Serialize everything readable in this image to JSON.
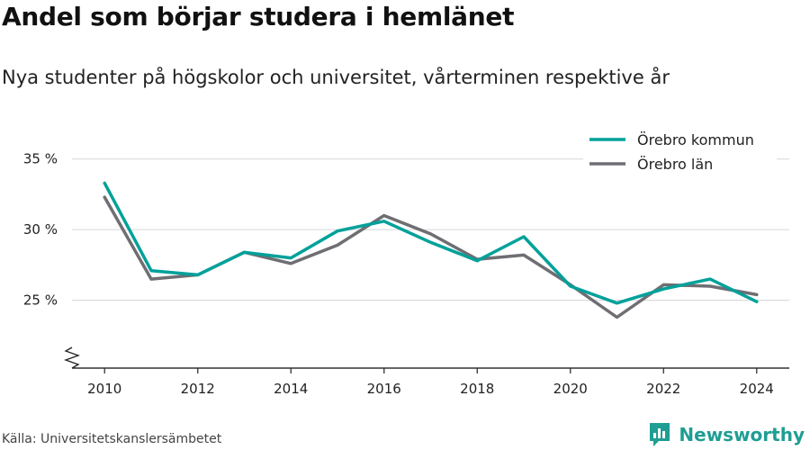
{
  "chart_data": {
    "type": "line",
    "title": "Andel som börjar studera i hemlänet",
    "subtitle": "Nya studenter på högskolor och universitet, vårterminen respektive år",
    "x": [
      2010,
      2011,
      2012,
      2013,
      2014,
      2015,
      2016,
      2017,
      2018,
      2019,
      2020,
      2021,
      2022,
      2023,
      2024
    ],
    "x_ticks": [
      2010,
      2012,
      2014,
      2016,
      2018,
      2020,
      2022,
      2024
    ],
    "y_ticks": [
      25,
      30,
      35
    ],
    "y_tick_labels": [
      "25 %",
      "30 %",
      "35 %"
    ],
    "xlim": [
      2009.3,
      2024.7
    ],
    "ylim": [
      20.2,
      36.7
    ],
    "grid": true,
    "axis_break": true,
    "legend_position": "top-right",
    "series": [
      {
        "name": "Örebro kommun",
        "color": "#00a19a",
        "values": [
          33.3,
          27.1,
          26.8,
          28.4,
          28.0,
          29.9,
          30.6,
          29.1,
          27.8,
          29.5,
          26.0,
          24.8,
          25.8,
          26.5,
          24.9
        ]
      },
      {
        "name": "Örebro län",
        "color": "#6e6e73",
        "values": [
          32.3,
          26.5,
          26.8,
          28.4,
          27.6,
          28.9,
          31.0,
          29.7,
          27.9,
          28.2,
          26.1,
          23.8,
          26.1,
          26.0,
          25.4
        ]
      }
    ]
  },
  "footer": {
    "source": "Källa: Universitetskanslersämbetet",
    "brand": "Newsworthy",
    "brand_icon": "bar-chart-logo-icon",
    "brand_color": "#1f9e93"
  }
}
